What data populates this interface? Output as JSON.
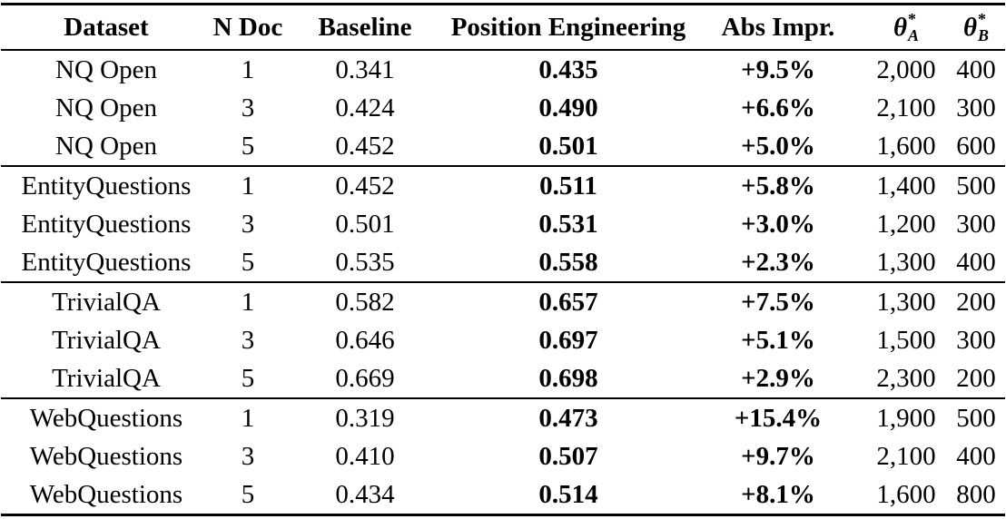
{
  "colors": {
    "text": "#000000",
    "background": "#ffffff",
    "rule": "#000000"
  },
  "table": {
    "bold_value_columns": [
      "position_engineering",
      "abs_impr"
    ],
    "columns": [
      {
        "key": "dataset",
        "label": "Dataset"
      },
      {
        "key": "n_doc",
        "label": "N Doc"
      },
      {
        "key": "baseline",
        "label": "Baseline"
      },
      {
        "key": "position_engineering",
        "label": "Position Engineering"
      },
      {
        "key": "abs_impr",
        "label": "Abs Impr."
      },
      {
        "key": "theta_a",
        "symbol": "θ",
        "sup": "*",
        "sub": "A"
      },
      {
        "key": "theta_b",
        "symbol": "θ",
        "sup": "*",
        "sub": "B"
      }
    ],
    "groups": [
      {
        "rows": [
          {
            "dataset": "NQ Open",
            "n_doc": "1",
            "baseline": "0.341",
            "position_engineering": "0.435",
            "abs_impr": "+9.5%",
            "theta_a": "2,000",
            "theta_b": "400"
          },
          {
            "dataset": "NQ Open",
            "n_doc": "3",
            "baseline": "0.424",
            "position_engineering": "0.490",
            "abs_impr": "+6.6%",
            "theta_a": "2,100",
            "theta_b": "300"
          },
          {
            "dataset": "NQ Open",
            "n_doc": "5",
            "baseline": "0.452",
            "position_engineering": "0.501",
            "abs_impr": "+5.0%",
            "theta_a": "1,600",
            "theta_b": "600"
          }
        ]
      },
      {
        "rows": [
          {
            "dataset": "EntityQuestions",
            "n_doc": "1",
            "baseline": "0.452",
            "position_engineering": "0.511",
            "abs_impr": "+5.8%",
            "theta_a": "1,400",
            "theta_b": "500"
          },
          {
            "dataset": "EntityQuestions",
            "n_doc": "3",
            "baseline": "0.501",
            "position_engineering": "0.531",
            "abs_impr": "+3.0%",
            "theta_a": "1,200",
            "theta_b": "300"
          },
          {
            "dataset": "EntityQuestions",
            "n_doc": "5",
            "baseline": "0.535",
            "position_engineering": "0.558",
            "abs_impr": "+2.3%",
            "theta_a": "1,300",
            "theta_b": "400"
          }
        ]
      },
      {
        "rows": [
          {
            "dataset": "TrivialQA",
            "n_doc": "1",
            "baseline": "0.582",
            "position_engineering": "0.657",
            "abs_impr": "+7.5%",
            "theta_a": "1,300",
            "theta_b": "200"
          },
          {
            "dataset": "TrivialQA",
            "n_doc": "3",
            "baseline": "0.646",
            "position_engineering": "0.697",
            "abs_impr": "+5.1%",
            "theta_a": "1,500",
            "theta_b": "300"
          },
          {
            "dataset": "TrivialQA",
            "n_doc": "5",
            "baseline": "0.669",
            "position_engineering": "0.698",
            "abs_impr": "+2.9%",
            "theta_a": "2,300",
            "theta_b": "200"
          }
        ]
      },
      {
        "rows": [
          {
            "dataset": "WebQuestions",
            "n_doc": "1",
            "baseline": "0.319",
            "position_engineering": "0.473",
            "abs_impr": "+15.4%",
            "theta_a": "1,900",
            "theta_b": "500"
          },
          {
            "dataset": "WebQuestions",
            "n_doc": "3",
            "baseline": "0.410",
            "position_engineering": "0.507",
            "abs_impr": "+9.7%",
            "theta_a": "2,100",
            "theta_b": "400"
          },
          {
            "dataset": "WebQuestions",
            "n_doc": "5",
            "baseline": "0.434",
            "position_engineering": "0.514",
            "abs_impr": "+8.1%",
            "theta_a": "1,600",
            "theta_b": "800"
          }
        ]
      }
    ]
  }
}
